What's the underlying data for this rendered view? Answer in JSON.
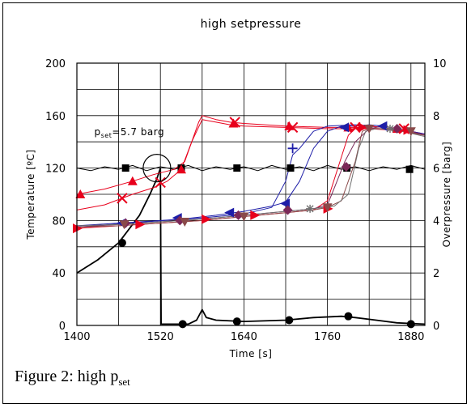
{
  "caption": {
    "text": "Figure 2: high p",
    "subscript": "set"
  },
  "chart_data": {
    "type": "line",
    "title": "high setpressure",
    "xlabel": "Time [s]",
    "ylabel_left": "Temperature [ºC]",
    "ylabel_right": "Overpressure [barg]",
    "xlim": [
      1400,
      1900
    ],
    "ylim_left": [
      0,
      200
    ],
    "ylim_right": [
      0,
      10
    ],
    "x_ticks": [
      "1400",
      "1520",
      "1640",
      "1760",
      "1880"
    ],
    "y_ticks_left": [
      "0",
      "40",
      "80",
      "120",
      "160",
      "200"
    ],
    "y_ticks_right": [
      "0",
      "2",
      "4",
      "6",
      "8",
      "10"
    ],
    "grid": true,
    "annotation": {
      "text": "p",
      "sub": "set",
      "tail": "=5.7 barg",
      "x": 1425,
      "y": 145
    },
    "circle_marker": {
      "x": 1515,
      "y": 120
    },
    "colors": {
      "black": "#000000",
      "red": "#e8001c",
      "blue": "#1e1ea8",
      "purple": "#7a2858",
      "brown": "#8a4a4a",
      "grey": "#707070"
    },
    "series": [
      {
        "axis": "left",
        "color": "black",
        "marker": "circle",
        "width": 1.8,
        "x": [
          1400,
          1430,
          1460,
          1490,
          1505,
          1515,
          1520
        ],
        "y": [
          40,
          50,
          63,
          84,
          100,
          112,
          120
        ],
        "markers": [
          [
            1465,
            63
          ]
        ]
      },
      {
        "axis": "right",
        "color": "black",
        "marker": "circle",
        "width": 1.8,
        "x": [
          1520,
          1521,
          1560,
          1572,
          1580,
          1586,
          1600,
          1640,
          1700,
          1740,
          1780,
          1800,
          1830,
          1860,
          1900
        ],
        "y": [
          6,
          0.05,
          0.05,
          0.2,
          0.6,
          0.3,
          0.2,
          0.15,
          0.2,
          0.3,
          0.35,
          0.3,
          0.2,
          0.1,
          0.05
        ],
        "markers": [
          [
            1552,
            0.05
          ],
          [
            1630,
            0.15
          ],
          [
            1705,
            0.2
          ],
          [
            1790,
            0.35
          ],
          [
            1880,
            0.05
          ]
        ]
      },
      {
        "axis": "left",
        "color": "black",
        "marker": "square",
        "width": 1.0,
        "x": [
          1400,
          1420,
          1440,
          1460,
          1480,
          1500,
          1520,
          1540,
          1560,
          1580,
          1600,
          1620,
          1640,
          1660,
          1680,
          1700,
          1720,
          1740,
          1760,
          1780,
          1800,
          1820,
          1840,
          1860,
          1880,
          1900
        ],
        "y": [
          120,
          118,
          121,
          119,
          122,
          118,
          121,
          119,
          122,
          118,
          121,
          119,
          121,
          118,
          122,
          119,
          121,
          118,
          122,
          119,
          121,
          118,
          121,
          119,
          122,
          119
        ],
        "markers": [
          [
            1470,
            120
          ],
          [
            1550,
            120
          ],
          [
            1630,
            120
          ],
          [
            1707,
            120
          ],
          [
            1788,
            120
          ],
          [
            1878,
            119
          ]
        ]
      },
      {
        "axis": "left",
        "color": "red",
        "marker": "triangle",
        "width": 1.0,
        "x": [
          1400,
          1440,
          1480,
          1510,
          1540,
          1555,
          1565,
          1575,
          1580,
          1600,
          1620,
          1640,
          1700,
          1760,
          1800,
          1840,
          1880,
          1900
        ],
        "y": [
          100,
          104,
          110,
          115,
          119,
          125,
          140,
          155,
          160,
          157,
          155,
          154,
          152,
          151,
          151,
          150,
          148,
          146
        ],
        "markers": [
          [
            1405,
            100
          ],
          [
            1480,
            110
          ],
          [
            1550,
            119
          ],
          [
            1625,
            154
          ],
          [
            1705,
            152
          ],
          [
            1790,
            151
          ],
          [
            1860,
            150
          ]
        ]
      },
      {
        "axis": "left",
        "color": "red",
        "marker": "cross",
        "width": 1.0,
        "x": [
          1400,
          1440,
          1480,
          1510,
          1530,
          1550,
          1565,
          1580,
          1600,
          1620,
          1640,
          1700,
          1760,
          1820,
          1880,
          1900
        ],
        "y": [
          88,
          92,
          100,
          105,
          110,
          119,
          140,
          157,
          155,
          153,
          152,
          151,
          150,
          150,
          148,
          145
        ],
        "markers": [
          [
            1465,
            97
          ],
          [
            1520,
            109
          ],
          [
            1627,
            155
          ],
          [
            1710,
            151
          ],
          [
            1800,
            151
          ],
          [
            1870,
            150
          ]
        ]
      },
      {
        "axis": "left",
        "color": "blue",
        "marker": "arrow-left",
        "width": 1.0,
        "x": [
          1400,
          1450,
          1500,
          1550,
          1600,
          1640,
          1680,
          1700,
          1720,
          1740,
          1760,
          1780,
          1800,
          1820,
          1840,
          1880,
          1900
        ],
        "y": [
          75,
          77,
          79,
          81,
          84,
          87,
          91,
          94,
          110,
          135,
          148,
          152,
          152,
          153,
          152,
          148,
          146
        ],
        "markers": [
          [
            1465,
            78
          ],
          [
            1545,
            82
          ],
          [
            1620,
            86
          ],
          [
            1700,
            93
          ],
          [
            1785,
            151
          ],
          [
            1840,
            152
          ]
        ]
      },
      {
        "axis": "left",
        "color": "blue",
        "marker": "plus",
        "width": 1.0,
        "x": [
          1400,
          1460,
          1520,
          1580,
          1640,
          1680,
          1700,
          1710,
          1720,
          1740,
          1760,
          1800,
          1840,
          1900
        ],
        "y": [
          76,
          78,
          80,
          82,
          85,
          90,
          110,
          130,
          135,
          148,
          152,
          153,
          151,
          145
        ],
        "markers": [
          [
            1710,
            135
          ]
        ]
      },
      {
        "axis": "left",
        "color": "red",
        "marker": "arrow-right",
        "width": 1.0,
        "x": [
          1400,
          1460,
          1520,
          1580,
          1640,
          1700,
          1740,
          1760,
          1775,
          1790,
          1800,
          1820,
          1840,
          1880,
          1900
        ],
        "y": [
          74,
          76,
          78,
          80,
          83,
          86,
          88,
          95,
          120,
          145,
          150,
          152,
          151,
          147,
          145
        ],
        "markers": [
          [
            1400,
            74
          ],
          [
            1490,
            77
          ],
          [
            1585,
            81
          ],
          [
            1655,
            84
          ],
          [
            1760,
            89
          ],
          [
            1810,
            151
          ],
          [
            1875,
            149
          ]
        ]
      },
      {
        "axis": "left",
        "color": "purple",
        "marker": "diamond",
        "width": 1.0,
        "x": [
          1400,
          1460,
          1520,
          1580,
          1640,
          1700,
          1740,
          1760,
          1770,
          1785,
          1800,
          1820,
          1840,
          1880,
          1900
        ],
        "y": [
          75,
          77,
          79,
          81,
          84,
          87,
          89,
          92,
          105,
          125,
          140,
          150,
          152,
          148,
          145
        ],
        "markers": [
          [
            1470,
            78
          ],
          [
            1548,
            80
          ],
          [
            1632,
            84
          ],
          [
            1703,
            88
          ],
          [
            1787,
            121
          ],
          [
            1860,
            150
          ]
        ]
      },
      {
        "axis": "left",
        "color": "brown",
        "marker": "triangle-down",
        "width": 1.0,
        "x": [
          1400,
          1460,
          1520,
          1580,
          1640,
          1700,
          1740,
          1760,
          1780,
          1800,
          1810,
          1820,
          1840,
          1880,
          1900
        ],
        "y": [
          75,
          76,
          78,
          80,
          83,
          86,
          88,
          90,
          95,
          125,
          148,
          150,
          150,
          147,
          145
        ],
        "markers": [
          [
            1468,
            77
          ],
          [
            1555,
            79
          ],
          [
            1640,
            83
          ],
          [
            1760,
            90
          ],
          [
            1820,
            150
          ],
          [
            1880,
            148
          ]
        ]
      },
      {
        "axis": "left",
        "color": "grey",
        "marker": "star",
        "width": 1.0,
        "x": [
          1400,
          1460,
          1520,
          1580,
          1640,
          1700,
          1740,
          1770,
          1790,
          1805,
          1815,
          1830,
          1860,
          1900
        ],
        "y": [
          76,
          77,
          79,
          81,
          84,
          87,
          89,
          91,
          100,
          135,
          148,
          150,
          149,
          144
        ],
        "markers": [
          [
            1735,
            89
          ],
          [
            1850,
            150
          ]
        ]
      }
    ]
  }
}
